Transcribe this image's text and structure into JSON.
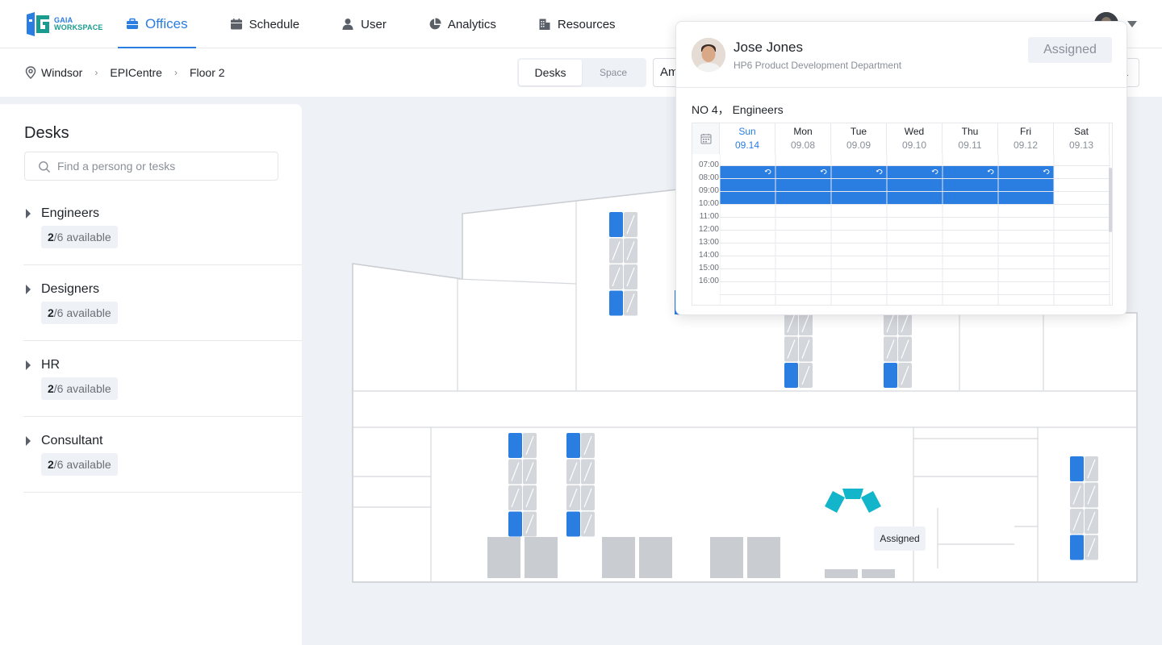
{
  "app": {
    "logo_line1": "GAIA",
    "logo_line2": "WORKSPACE"
  },
  "nav": {
    "items": [
      {
        "label": "Offices",
        "icon": "briefcase-icon",
        "active": true
      },
      {
        "label": "Schedule",
        "icon": "calendar-icon"
      },
      {
        "label": "User",
        "icon": "user-icon"
      },
      {
        "label": "Analytics",
        "icon": "pie-chart-icon"
      },
      {
        "label": "Resources",
        "icon": "building-icon"
      }
    ]
  },
  "breadcrumb": {
    "items": [
      "Windsor",
      "EPICentre",
      "Floor 2"
    ]
  },
  "view_toggle": {
    "options": [
      "Desks",
      "Space"
    ],
    "selected": "Desks"
  },
  "select_stub": "Am",
  "right_stub": "1",
  "panel": {
    "title": "Desks",
    "search_placeholder": "Find a persong or tesks",
    "groups": [
      {
        "name": "Engineers",
        "available": "2",
        "total": "/6 available"
      },
      {
        "name": "Designers",
        "available": "2",
        "total": "/6 available"
      },
      {
        "name": "HR",
        "available": "2",
        "total": "/6 available"
      },
      {
        "name": "Consultant",
        "available": "2",
        "total": "/6 available"
      }
    ]
  },
  "map": {
    "tooltip": "Assigned"
  },
  "popover": {
    "name": "Jose Jones",
    "department": "HP6 Product Development Department",
    "status": "Assigned",
    "desk": "NO 4， Engineers",
    "days": [
      {
        "day": "Sun",
        "date": "09.14",
        "today": true
      },
      {
        "day": "Mon",
        "date": "09.08"
      },
      {
        "day": "Tue",
        "date": "09.09"
      },
      {
        "day": "Wed",
        "date": "09.10"
      },
      {
        "day": "Thu",
        "date": "09.11"
      },
      {
        "day": "Fri",
        "date": "09.12"
      },
      {
        "day": "Sat",
        "date": "09.13"
      }
    ],
    "hours": [
      "07:00",
      "08:00",
      "09:00",
      "10:00",
      "11:00",
      "12:00",
      "13:00",
      "14:00",
      "15:00",
      "16:00"
    ],
    "booking": {
      "days": [
        "Sun",
        "Mon",
        "Tue",
        "Wed",
        "Thu",
        "Fri"
      ],
      "start_hour": "08:00",
      "end_hour": "11:00"
    }
  },
  "colors": {
    "accent": "#2a7de1",
    "desk_available": "#2a7de1",
    "desk_occupied": "#d3d6db",
    "teal": "#12b5c9"
  }
}
